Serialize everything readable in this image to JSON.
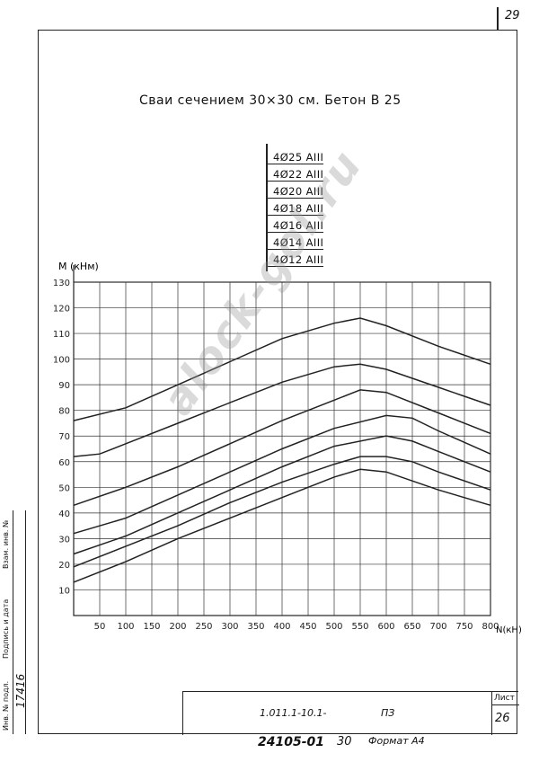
{
  "page_number": "29",
  "title": "Сваи сечением 30×30 см.  Бетон В 25",
  "stamp": {
    "code": "1.011.1-10.1-",
    "doc_type": "ПЗ",
    "sheet_label": "Лист",
    "sheet_number": "26"
  },
  "footer": {
    "number": "24105-01",
    "copy": "30",
    "format": "Формат А4"
  },
  "side_strip": {
    "inv_label": "Инв. № подл.",
    "inv_value": "17416",
    "sign_label": "Подпись и дата",
    "replace_label": "Взам. инв. №"
  },
  "watermark": "alock-gol.ru",
  "colors": {
    "ink": "#222222",
    "grid": "#333333"
  },
  "chart_data": {
    "type": "line",
    "title": "",
    "xlabel": "N(кН)",
    "ylabel": "М (кНм)",
    "xlim": [
      0,
      800
    ],
    "ylim": [
      0,
      130
    ],
    "x_ticks": [
      50,
      100,
      150,
      200,
      250,
      300,
      350,
      400,
      450,
      500,
      550,
      600,
      650,
      700,
      750,
      800
    ],
    "y_ticks": [
      10,
      20,
      30,
      40,
      50,
      60,
      70,
      80,
      90,
      100,
      110,
      120,
      130
    ],
    "grid": true,
    "legend": "top-center",
    "series": [
      {
        "name": "4Ø25 АIII",
        "points": [
          [
            0,
            76
          ],
          [
            100,
            81
          ],
          [
            200,
            90
          ],
          [
            300,
            99
          ],
          [
            400,
            108
          ],
          [
            500,
            114
          ],
          [
            550,
            116
          ],
          [
            600,
            113
          ],
          [
            700,
            105
          ],
          [
            800,
            98
          ]
        ]
      },
      {
        "name": "4Ø22 АIII",
        "points": [
          [
            0,
            62
          ],
          [
            50,
            63
          ],
          [
            100,
            67
          ],
          [
            200,
            75
          ],
          [
            300,
            83
          ],
          [
            400,
            91
          ],
          [
            500,
            97
          ],
          [
            550,
            98
          ],
          [
            600,
            96
          ],
          [
            700,
            89
          ],
          [
            800,
            82
          ]
        ]
      },
      {
        "name": "4Ø20 АIII",
        "points": [
          [
            0,
            43
          ],
          [
            100,
            50
          ],
          [
            200,
            58
          ],
          [
            300,
            67
          ],
          [
            400,
            76
          ],
          [
            500,
            84
          ],
          [
            550,
            88
          ],
          [
            600,
            87
          ],
          [
            700,
            79
          ],
          [
            800,
            71
          ]
        ]
      },
      {
        "name": "4Ø18 АIII",
        "points": [
          [
            0,
            32
          ],
          [
            100,
            38
          ],
          [
            200,
            47
          ],
          [
            300,
            56
          ],
          [
            400,
            65
          ],
          [
            500,
            73
          ],
          [
            600,
            78
          ],
          [
            650,
            77
          ],
          [
            700,
            72
          ],
          [
            800,
            63
          ]
        ]
      },
      {
        "name": "4Ø16 АIII",
        "points": [
          [
            0,
            24
          ],
          [
            100,
            31
          ],
          [
            200,
            40
          ],
          [
            300,
            49
          ],
          [
            400,
            58
          ],
          [
            500,
            66
          ],
          [
            600,
            70
          ],
          [
            650,
            68
          ],
          [
            700,
            64
          ],
          [
            800,
            56
          ]
        ]
      },
      {
        "name": "4Ø14 АIII",
        "points": [
          [
            0,
            19
          ],
          [
            100,
            27
          ],
          [
            200,
            35
          ],
          [
            300,
            44
          ],
          [
            400,
            52
          ],
          [
            500,
            59
          ],
          [
            550,
            62
          ],
          [
            600,
            62
          ],
          [
            650,
            60
          ],
          [
            700,
            56
          ],
          [
            800,
            49
          ]
        ]
      },
      {
        "name": "4Ø12 АIII",
        "points": [
          [
            0,
            13
          ],
          [
            100,
            21
          ],
          [
            200,
            30
          ],
          [
            300,
            38
          ],
          [
            400,
            46
          ],
          [
            500,
            54
          ],
          [
            550,
            57
          ],
          [
            600,
            56
          ],
          [
            700,
            49
          ],
          [
            800,
            43
          ]
        ]
      }
    ]
  }
}
